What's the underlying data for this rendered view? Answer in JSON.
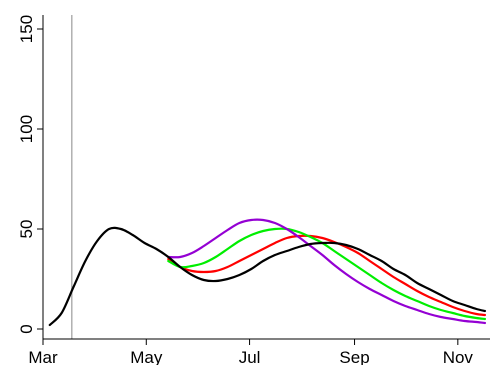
{
  "chart_data": {
    "type": "line",
    "title": "",
    "xlabel": "",
    "ylabel": "",
    "xlim": [
      "2020-03-01",
      "2020-11-20"
    ],
    "ylim": [
      0,
      150
    ],
    "x_ticks": [
      {
        "date": "2020-03-01",
        "label": "Mar"
      },
      {
        "date": "2020-05-01",
        "label": "May"
      },
      {
        "date": "2020-07-01",
        "label": "Jul"
      },
      {
        "date": "2020-09-01",
        "label": "Sep"
      },
      {
        "date": "2020-11-01",
        "label": "Nov"
      }
    ],
    "y_ticks": [
      {
        "value": 0,
        "label": "0"
      },
      {
        "value": 50,
        "label": "50"
      },
      {
        "value": 100,
        "label": "100"
      },
      {
        "value": 150,
        "label": "150"
      }
    ],
    "vertical_marker": "2020-03-18",
    "grid": false,
    "legend": "none",
    "series": [
      {
        "color": "#000000",
        "points": [
          [
            "2020-03-05",
            2
          ],
          [
            "2020-03-12",
            8
          ],
          [
            "2020-03-19",
            21
          ],
          [
            "2020-03-26",
            34
          ],
          [
            "2020-04-02",
            44
          ],
          [
            "2020-04-09",
            50
          ],
          [
            "2020-04-16",
            50
          ],
          [
            "2020-04-23",
            47
          ],
          [
            "2020-04-30",
            43
          ],
          [
            "2020-05-07",
            40
          ],
          [
            "2020-05-14",
            36
          ],
          [
            "2020-05-21",
            31
          ],
          [
            "2020-05-28",
            27
          ],
          [
            "2020-06-04",
            24.5
          ],
          [
            "2020-06-11",
            24
          ],
          [
            "2020-06-18",
            25
          ],
          [
            "2020-06-25",
            27
          ],
          [
            "2020-07-02",
            30
          ],
          [
            "2020-07-09",
            34
          ],
          [
            "2020-07-16",
            37
          ],
          [
            "2020-07-23",
            39
          ],
          [
            "2020-07-30",
            41
          ],
          [
            "2020-08-06",
            42.5
          ],
          [
            "2020-08-13",
            43
          ],
          [
            "2020-08-20",
            43
          ],
          [
            "2020-08-27",
            42
          ],
          [
            "2020-09-03",
            40
          ],
          [
            "2020-09-10",
            37
          ],
          [
            "2020-09-17",
            34
          ],
          [
            "2020-09-24",
            30
          ],
          [
            "2020-10-01",
            27
          ],
          [
            "2020-10-08",
            23
          ],
          [
            "2020-10-15",
            20
          ],
          [
            "2020-10-22",
            17
          ],
          [
            "2020-10-29",
            14
          ],
          [
            "2020-11-05",
            12
          ],
          [
            "2020-11-12",
            10
          ],
          [
            "2020-11-17",
            9
          ]
        ]
      },
      {
        "color": "#ff0000",
        "points": [
          [
            "2020-05-14",
            35
          ],
          [
            "2020-05-21",
            31
          ],
          [
            "2020-05-28",
            29
          ],
          [
            "2020-06-04",
            28.5
          ],
          [
            "2020-06-11",
            29
          ],
          [
            "2020-06-18",
            31
          ],
          [
            "2020-06-25",
            34
          ],
          [
            "2020-07-02",
            37
          ],
          [
            "2020-07-09",
            40
          ],
          [
            "2020-07-16",
            43
          ],
          [
            "2020-07-23",
            45.5
          ],
          [
            "2020-07-30",
            46.5
          ],
          [
            "2020-08-06",
            46.5
          ],
          [
            "2020-08-13",
            45.5
          ],
          [
            "2020-08-20",
            43.5
          ],
          [
            "2020-08-27",
            41
          ],
          [
            "2020-09-03",
            38
          ],
          [
            "2020-09-10",
            34
          ],
          [
            "2020-09-17",
            30
          ],
          [
            "2020-09-24",
            26
          ],
          [
            "2020-10-01",
            22.5
          ],
          [
            "2020-10-08",
            19
          ],
          [
            "2020-10-15",
            16
          ],
          [
            "2020-10-22",
            13.5
          ],
          [
            "2020-10-29",
            11
          ],
          [
            "2020-11-05",
            9
          ],
          [
            "2020-11-12",
            7.5
          ],
          [
            "2020-11-17",
            7
          ]
        ]
      },
      {
        "color": "#00ee00",
        "points": [
          [
            "2020-05-14",
            34
          ],
          [
            "2020-05-21",
            31
          ],
          [
            "2020-05-28",
            31.5
          ],
          [
            "2020-06-04",
            33
          ],
          [
            "2020-06-11",
            36
          ],
          [
            "2020-06-18",
            40
          ],
          [
            "2020-06-25",
            44
          ],
          [
            "2020-07-02",
            47
          ],
          [
            "2020-07-09",
            49
          ],
          [
            "2020-07-16",
            50
          ],
          [
            "2020-07-23",
            50
          ],
          [
            "2020-07-30",
            48.5
          ],
          [
            "2020-08-06",
            46
          ],
          [
            "2020-08-13",
            43
          ],
          [
            "2020-08-20",
            39
          ],
          [
            "2020-08-27",
            35
          ],
          [
            "2020-09-03",
            31
          ],
          [
            "2020-09-10",
            27
          ],
          [
            "2020-09-17",
            23
          ],
          [
            "2020-09-24",
            19.5
          ],
          [
            "2020-10-01",
            16.5
          ],
          [
            "2020-10-08",
            14
          ],
          [
            "2020-10-15",
            11.5
          ],
          [
            "2020-10-22",
            9.5
          ],
          [
            "2020-10-29",
            8
          ],
          [
            "2020-11-05",
            6.5
          ],
          [
            "2020-11-12",
            5.5
          ],
          [
            "2020-11-17",
            5
          ]
        ]
      },
      {
        "color": "#9400d3",
        "points": [
          [
            "2020-05-14",
            36
          ],
          [
            "2020-05-21",
            36
          ],
          [
            "2020-05-28",
            38
          ],
          [
            "2020-06-04",
            41.5
          ],
          [
            "2020-06-11",
            45.5
          ],
          [
            "2020-06-18",
            49.5
          ],
          [
            "2020-06-25",
            53
          ],
          [
            "2020-07-02",
            54.5
          ],
          [
            "2020-07-09",
            54.5
          ],
          [
            "2020-07-16",
            53
          ],
          [
            "2020-07-23",
            50
          ],
          [
            "2020-07-30",
            46
          ],
          [
            "2020-08-06",
            41.5
          ],
          [
            "2020-08-13",
            37
          ],
          [
            "2020-08-20",
            32
          ],
          [
            "2020-08-27",
            27.5
          ],
          [
            "2020-09-03",
            23.5
          ],
          [
            "2020-09-10",
            20
          ],
          [
            "2020-09-17",
            17
          ],
          [
            "2020-09-24",
            14
          ],
          [
            "2020-10-01",
            11.5
          ],
          [
            "2020-10-08",
            9.5
          ],
          [
            "2020-10-15",
            7.5
          ],
          [
            "2020-10-22",
            6
          ],
          [
            "2020-10-29",
            5
          ],
          [
            "2020-11-05",
            4
          ],
          [
            "2020-11-12",
            3.5
          ],
          [
            "2020-11-17",
            3
          ]
        ]
      }
    ]
  }
}
